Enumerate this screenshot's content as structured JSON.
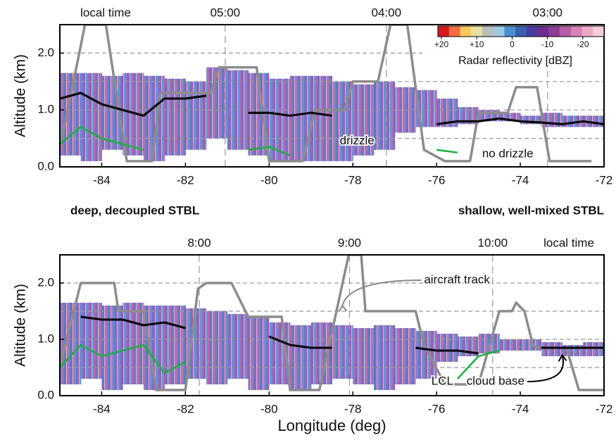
{
  "chart_data": [
    {
      "type": "line",
      "ylabel": "Altitude (km)",
      "top_axis_label": "local time",
      "xlim": [
        -85,
        -72
      ],
      "ylim": [
        0,
        2.5
      ],
      "xticks": [
        -84,
        -82,
        -80,
        -78,
        -76,
        -74,
        -72
      ],
      "yticks": [
        {
          "value": 0,
          "label": "0.0"
        },
        {
          "value": 1,
          "label": "1.0"
        },
        {
          "value": 2,
          "label": "2.0"
        }
      ],
      "ygrid": [
        0.5,
        1,
        1.5,
        2
      ],
      "top_ticks": [
        {
          "value": -81.05,
          "label": "05:00"
        },
        {
          "value": -77.2,
          "label": "04:00"
        },
        {
          "value": -73.35,
          "label": "03:00"
        }
      ],
      "radar": {
        "x": [
          -85,
          -84.5,
          -84,
          -83.5,
          -83,
          -82.5,
          -82,
          -81.5,
          -81,
          -80.5,
          -80,
          -79.5,
          -79,
          -78.5,
          -78,
          -77.5,
          -77,
          -76.5,
          -76,
          -75.5,
          -75,
          -74.5,
          -74,
          -73.5,
          -73,
          -72.5
        ],
        "top": [
          1.65,
          1.65,
          1.6,
          1.65,
          1.6,
          1.55,
          1.5,
          1.75,
          1.7,
          1.65,
          1.55,
          1.6,
          1.6,
          1.5,
          1.45,
          1.5,
          1.4,
          1.35,
          1.2,
          1.05,
          1.0,
          0.95,
          0.9,
          0.95,
          0.9,
          0.9
        ],
        "bottom": [
          0.2,
          0.1,
          0.3,
          0.2,
          0.1,
          0.2,
          0.3,
          0.5,
          0.3,
          0.2,
          0.1,
          0.1,
          0.1,
          0.1,
          0.2,
          0.3,
          0.6,
          0.7,
          0.7,
          0.75,
          0.8,
          0.8,
          0.75,
          0.7,
          0.7,
          0.7
        ]
      },
      "series": [
        {
          "color": "#8c8c8c",
          "x": [
            -85,
            -84.4,
            -83.9,
            -83.4,
            -82.8,
            -82.6,
            -81.4,
            -81.2,
            -80.3,
            -80.0,
            -79.2,
            -78.9,
            -78.2,
            -78.0,
            -77.4,
            -77.1,
            -76.7,
            -76.3,
            -75.8,
            -75.2,
            -75.0,
            -74.3,
            -74.1,
            -73.6,
            -73.3,
            -72.3
          ],
          "values": [
            0.3,
            2.5,
            2.5,
            0.1,
            0.1,
            1.3,
            1.3,
            1.75,
            1.75,
            0.1,
            0.1,
            1.0,
            1.0,
            1.5,
            1.5,
            2.5,
            2.5,
            0.3,
            0.1,
            0.1,
            0.95,
            0.95,
            1.4,
            1.4,
            0.1,
            0.1
          ]
        },
        {
          "color": "#000000",
          "x": [
            -85,
            -84.5,
            -84,
            -83.5,
            -83,
            -82.5,
            -82,
            -81.5,
            -81,
            -80.5,
            -80,
            -79.5,
            -79,
            -78.5,
            -78,
            -77.5,
            -77,
            -76.5,
            -76,
            -75.5,
            -75,
            -74.5,
            -74,
            -73.5,
            -73,
            -72.5,
            -72
          ],
          "values": [
            1.2,
            1.3,
            1.1,
            1.0,
            0.9,
            1.2,
            1.2,
            1.25,
            null,
            0.95,
            0.95,
            0.9,
            0.95,
            0.9,
            null,
            null,
            null,
            null,
            0.75,
            0.8,
            0.8,
            0.85,
            0.8,
            0.78,
            0.75,
            0.8,
            0.75
          ]
        },
        {
          "color": "#1db040",
          "x": [
            -85,
            -84.5,
            -84,
            -83.5,
            -83,
            -82.5,
            -82,
            -81.5,
            -81,
            -80.5,
            -80,
            -79.5,
            -79,
            -78.5,
            -78,
            -77.5,
            -77,
            -76.5,
            -76,
            -75.5,
            -75,
            -74.5,
            -74,
            -73.5,
            -73,
            -72.5,
            -72
          ],
          "values": [
            0.4,
            0.7,
            0.5,
            0.4,
            0.3,
            null,
            null,
            null,
            null,
            0.3,
            0.35,
            0.2,
            null,
            null,
            null,
            null,
            null,
            null,
            0.3,
            0.25,
            null,
            null,
            null,
            null,
            null,
            null,
            null
          ]
        }
      ],
      "annotations": [
        "drizzle",
        "no drizzle"
      ],
      "notes": [
        "deep, decoupled STBL",
        "shallow, well-mixed STBL"
      ],
      "colorbar": {
        "label": "Radar reflectivity [dBZ]",
        "colors": [
          "#d7191c",
          "#f46d43",
          "#fdc85a",
          "#e8e0a0",
          "#bdbdbd",
          "#9ecae1",
          "#4a90d0",
          "#3a5fb0",
          "#4b3aa0",
          "#6b2d8e",
          "#8e3d96",
          "#b45fa6",
          "#d883b5",
          "#efa9c4",
          "#f8ccd6"
        ],
        "clim": [
          21,
          -26
        ],
        "ticks": [
          {
            "value": 20,
            "label": "+20"
          },
          {
            "value": 10,
            "label": "+10"
          },
          0,
          -10,
          -20
        ]
      }
    },
    {
      "type": "line",
      "ylabel": "Altitude (km)",
      "xlabel": "Longitude (deg)",
      "top_axis_label": "local time",
      "xlim": [
        -85,
        -72
      ],
      "ylim": [
        0,
        2.5
      ],
      "xticks": [
        -84,
        -82,
        -80,
        -78,
        -76,
        -74,
        -72
      ],
      "yticks": [
        {
          "value": 0,
          "label": "0.0"
        },
        {
          "value": 1,
          "label": "1.0"
        },
        {
          "value": 2,
          "label": "2.0"
        }
      ],
      "ygrid": [
        0.5,
        1,
        1.5,
        2
      ],
      "top_ticks": [
        {
          "value": -81.67,
          "label": "8:00"
        },
        {
          "value": -78.08,
          "label": "9:00"
        },
        {
          "value": -74.66,
          "label": "10:00"
        }
      ],
      "radar": {
        "x": [
          -85,
          -84.5,
          -84,
          -83.5,
          -83,
          -82.5,
          -82,
          -81.5,
          -81,
          -80.5,
          -80,
          -79.5,
          -79,
          -78.5,
          -78,
          -77.5,
          -77,
          -76.5,
          -76,
          -75.5,
          -75,
          -74.5,
          -74,
          -73.5,
          -73,
          -72.5
        ],
        "top": [
          1.65,
          1.65,
          1.6,
          1.65,
          1.6,
          1.6,
          1.55,
          1.5,
          1.45,
          1.4,
          1.3,
          1.25,
          1.3,
          1.25,
          1.2,
          1.25,
          1.2,
          1.15,
          1.1,
          1.05,
          1.1,
          1.0,
          1.0,
          0.95,
          0.9,
          0.95
        ],
        "bottom": [
          0.2,
          0.3,
          0.1,
          0.2,
          0.1,
          0.2,
          0.3,
          0.2,
          0.3,
          0.1,
          0.2,
          0.1,
          0.2,
          0.3,
          0.2,
          0.1,
          0.2,
          0.3,
          0.6,
          0.7,
          0.75,
          0.8,
          0.8,
          0.7,
          0.7,
          0.7
        ]
      },
      "series": [
        {
          "name": "aircraft track",
          "color": "#8c8c8c",
          "x": [
            -85,
            -84.5,
            -83.7,
            -83.6,
            -83.0,
            -82.7,
            -82.0,
            -81.7,
            -81.5,
            -80.9,
            -80.5,
            -79.7,
            -79.5,
            -78.8,
            -78.1,
            -77.8,
            -77.7,
            -76.5,
            -76.3,
            -75.8,
            -75.0,
            -74.5,
            -74.2,
            -74.1,
            -73.9,
            -73.7,
            -73.6,
            -72.9,
            -72.6,
            -72.0
          ],
          "values": [
            0.5,
            2.0,
            2.0,
            1.5,
            1.5,
            0.1,
            0.1,
            1.9,
            2.0,
            2.0,
            1.4,
            1.4,
            0.1,
            0.1,
            2.5,
            2.5,
            1.5,
            1.5,
            0.9,
            0.2,
            0.2,
            1.5,
            1.5,
            1.65,
            1.5,
            0.9,
            0.85,
            0.85,
            0.1,
            0.1
          ]
        },
        {
          "name": "cloud base",
          "color": "#000000",
          "x": [
            -85,
            -84.5,
            -84,
            -83.5,
            -83,
            -82.5,
            -82,
            -81.5,
            -81,
            -80.5,
            -80,
            -79.5,
            -79,
            -78.5,
            -78,
            -77.5,
            -77,
            -76.5,
            -76,
            -75.5,
            -75,
            -74.5,
            -74,
            -73.5,
            -73,
            -72.5,
            -72
          ],
          "values": [
            null,
            1.4,
            1.35,
            1.35,
            1.25,
            1.3,
            1.2,
            null,
            null,
            null,
            1.05,
            0.9,
            0.85,
            0.85,
            null,
            null,
            null,
            0.85,
            0.8,
            0.8,
            0.75,
            null,
            null,
            0.85,
            0.85,
            0.85,
            0.85
          ]
        },
        {
          "name": "LCL",
          "color": "#1db040",
          "x": [
            -85,
            -84.5,
            -84,
            -83.5,
            -83,
            -82.5,
            -82,
            -81.5,
            -81,
            -80.5,
            -80,
            -79.5,
            -79,
            -78.5,
            -78,
            -77.5,
            -77,
            -76.5,
            -76,
            -75.5,
            -75,
            -74.5,
            -74,
            -73.5,
            -73,
            -72.5,
            -72
          ],
          "values": [
            0.5,
            0.9,
            0.7,
            0.8,
            0.9,
            0.4,
            0.6,
            null,
            null,
            null,
            null,
            null,
            null,
            null,
            null,
            null,
            null,
            null,
            null,
            0.3,
            0.7,
            0.8,
            null,
            null,
            null,
            null,
            null
          ]
        }
      ]
    }
  ]
}
